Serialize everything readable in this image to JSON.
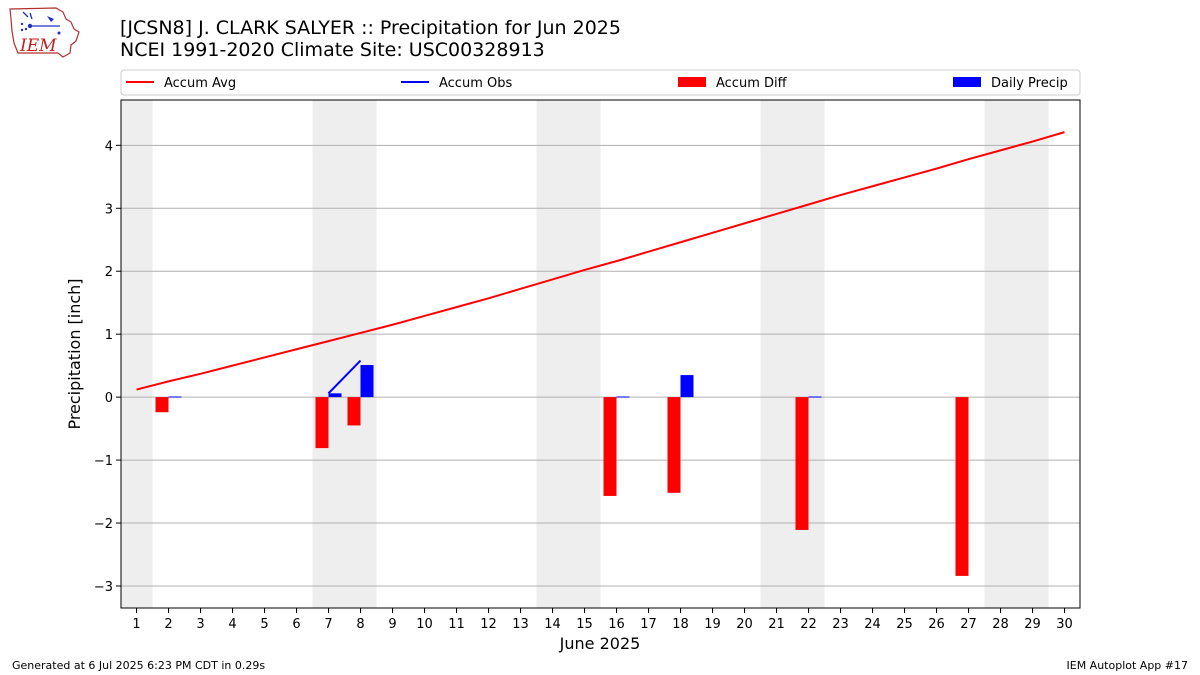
{
  "title": "[JCSN8] J. CLARK SALYER :: Precipitation for Jun 2025",
  "subtitle": "NCEI 1991-2020 Climate Site: USC00328913",
  "logo_text": "IEM",
  "footer_left": "Generated at 6 Jul 2025 6:23 PM CDT in 0.29s",
  "footer_right": "IEM Autoplot App #17",
  "colors": {
    "accum_avg": "#ff0000",
    "accum_obs": "#0000ff",
    "accum_diff": "#ff0000",
    "daily_precip": "#0000ff",
    "weekend_shade": "#eeeeee",
    "grid": "#b0b0b0"
  },
  "chart_data": {
    "type": "bar",
    "xlabel": "June 2025",
    "ylabel": "Precipitation [inch]",
    "xlim": [
      0.5,
      30.5
    ],
    "ylim": [
      -3.35,
      4.72
    ],
    "yticks": [
      -3,
      -2,
      -1,
      0,
      1,
      2,
      3,
      4
    ],
    "ytick_labels": [
      "−3",
      "−2",
      "−1",
      "0",
      "1",
      "2",
      "3",
      "4"
    ],
    "xticks": [
      1,
      2,
      3,
      4,
      5,
      6,
      7,
      8,
      9,
      10,
      11,
      12,
      13,
      14,
      15,
      16,
      17,
      18,
      19,
      20,
      21,
      22,
      23,
      24,
      25,
      26,
      27,
      28,
      29,
      30
    ],
    "grid": "horizontal",
    "weekend_spans": [
      [
        0.5,
        1.5
      ],
      [
        6.5,
        8.5
      ],
      [
        13.5,
        15.5
      ],
      [
        20.5,
        22.5
      ],
      [
        27.5,
        29.5
      ]
    ],
    "legend": {
      "placement": "top",
      "entries": [
        {
          "label": "Accum Avg",
          "kind": "line",
          "color_key": "accum_avg"
        },
        {
          "label": "Accum Obs",
          "kind": "line",
          "color_key": "accum_obs"
        },
        {
          "label": "Accum Diff",
          "kind": "bar",
          "color_key": "accum_diff"
        },
        {
          "label": "Daily Precip",
          "kind": "bar",
          "color_key": "daily_precip"
        }
      ]
    },
    "accum_avg": {
      "days": [
        1,
        2,
        3,
        4,
        5,
        6,
        7,
        8,
        9,
        10,
        11,
        12,
        13,
        14,
        15,
        16,
        17,
        18,
        19,
        20,
        21,
        22,
        23,
        24,
        25,
        26,
        27,
        28,
        29,
        30
      ],
      "values": [
        0.12,
        0.25,
        0.37,
        0.5,
        0.63,
        0.76,
        0.89,
        1.02,
        1.15,
        1.29,
        1.43,
        1.57,
        1.72,
        1.87,
        2.02,
        2.16,
        2.31,
        2.46,
        2.61,
        2.76,
        2.91,
        3.06,
        3.21,
        3.35,
        3.49,
        3.63,
        3.78,
        3.92,
        4.06,
        4.21
      ]
    },
    "accum_obs": {
      "days": [
        7,
        8
      ],
      "values": [
        0.06,
        0.58
      ]
    },
    "accum_diff": {
      "days": [
        2,
        7,
        8,
        16,
        18,
        22,
        27
      ],
      "values": [
        -0.24,
        -0.81,
        -0.45,
        -1.57,
        -1.52,
        -2.11,
        -2.84
      ]
    },
    "daily_precip": {
      "days": [
        2,
        7,
        8,
        16,
        18,
        22
      ],
      "values": [
        0.01,
        0.06,
        0.51,
        0.01,
        0.35,
        0.01
      ]
    }
  }
}
